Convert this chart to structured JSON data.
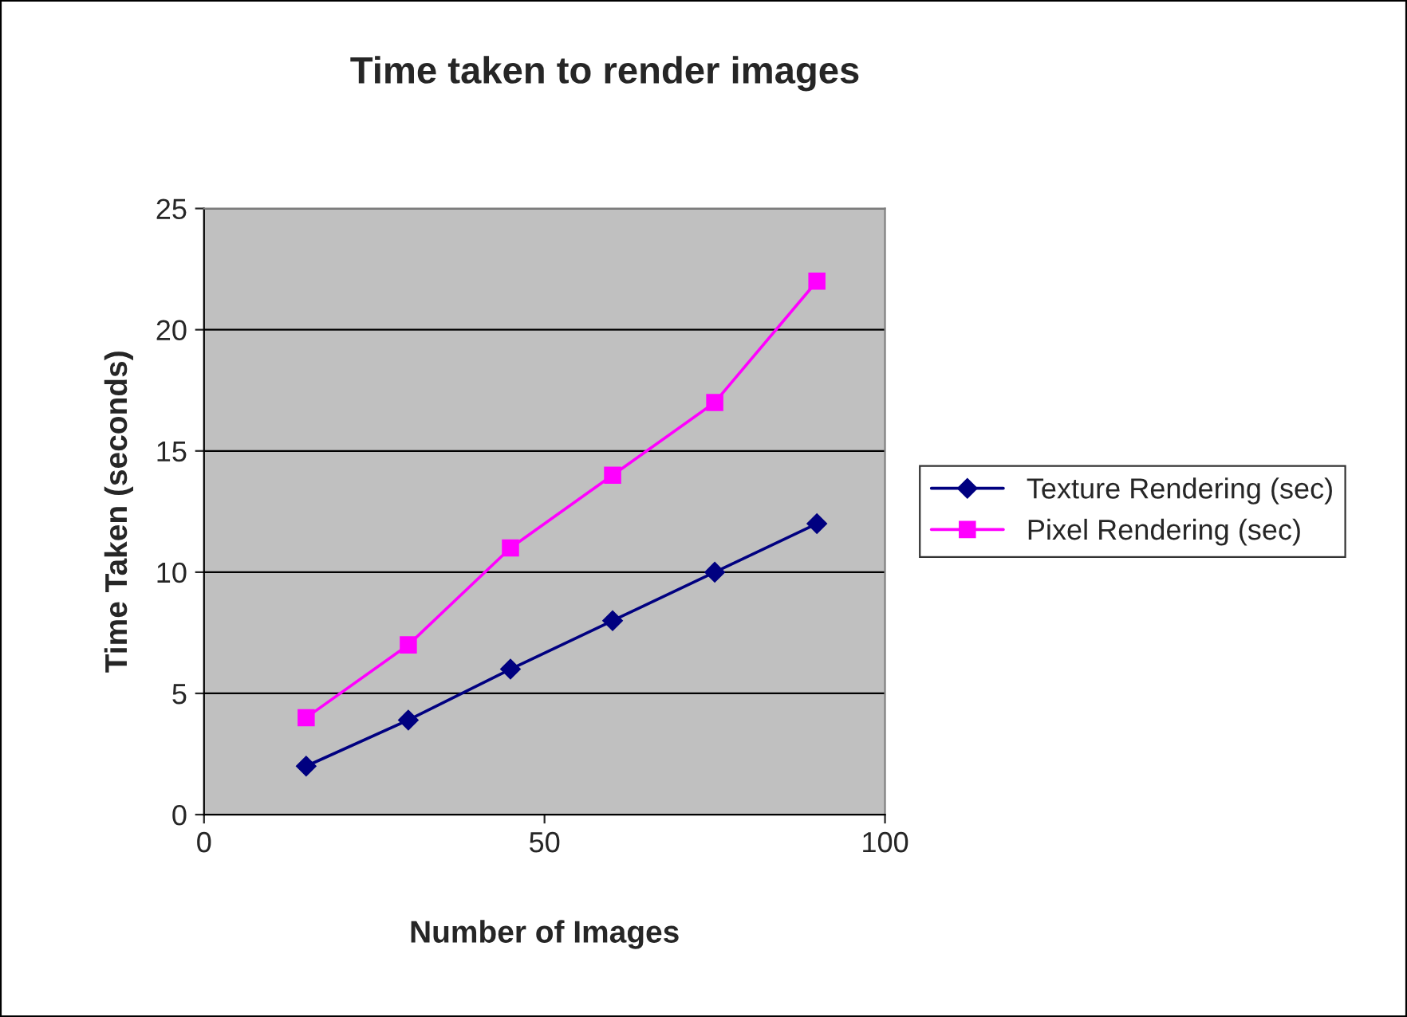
{
  "chart_data": {
    "type": "line",
    "title": "Time taken to render images",
    "xlabel": "Number of Images",
    "ylabel": "Time Taken (seconds)",
    "x": [
      15,
      30,
      45,
      60,
      75,
      90
    ],
    "series": [
      {
        "name": "Texture Rendering (sec)",
        "color": "#000080",
        "marker": "diamond",
        "values": [
          2,
          3.9,
          6,
          8,
          10,
          12
        ]
      },
      {
        "name": "Pixel Rendering (sec)",
        "color": "#ff00ff",
        "marker": "square",
        "values": [
          4,
          7,
          11,
          14,
          17,
          22
        ]
      }
    ],
    "xlim": [
      0,
      100
    ],
    "xticks": [
      0,
      50,
      100
    ],
    "ylim": [
      0,
      25
    ],
    "yticks": [
      0,
      5,
      10,
      15,
      20,
      25
    ],
    "grid": "y",
    "legend": "right",
    "line_style": "solid"
  }
}
